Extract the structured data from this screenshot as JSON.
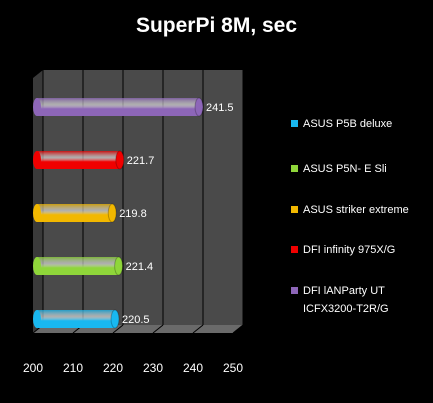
{
  "chart_data": {
    "type": "bar",
    "orientation": "horizontal",
    "title": "SuperPi 8M, sec",
    "xlabel": "",
    "ylabel": "",
    "xlim": [
      200,
      250
    ],
    "xticks": [
      200,
      210,
      220,
      230,
      240,
      250
    ],
    "grid": true,
    "legend_position": "right",
    "series": [
      {
        "name": "ASUS P5B deluxe",
        "value": 220.5,
        "label": "220.5",
        "color": "#19b8f0"
      },
      {
        "name": "ASUS P5N- E Sli",
        "value": 221.4,
        "label": "221.4",
        "color": "#8fd63a"
      },
      {
        "name": "ASUS striker extreme",
        "value": 219.8,
        "label": "219.8",
        "color": "#f2b800"
      },
      {
        "name": "DFI infinity 975X/G",
        "value": 221.7,
        "label": "221.7",
        "color": "#f00000"
      },
      {
        "name": "DFI lANParty UT ICFX3200-T2R/G",
        "value": 241.5,
        "label": "241.5",
        "color": "#8d66b8"
      }
    ],
    "bar_order_top_to_bottom": [
      4,
      3,
      2,
      1,
      0
    ]
  }
}
